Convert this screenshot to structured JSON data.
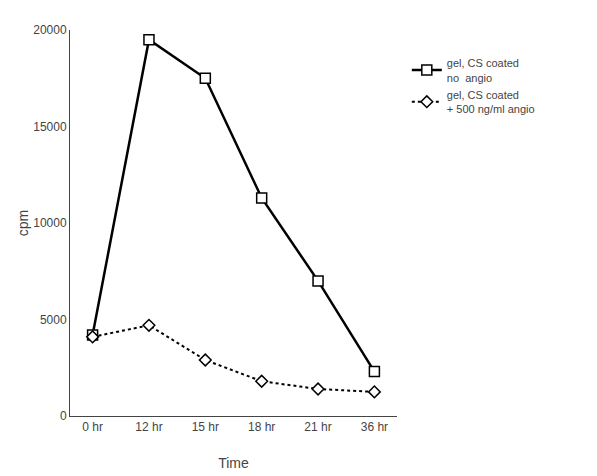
{
  "chart_data": {
    "type": "line",
    "xlabel": "Time",
    "ylabel": "cpm",
    "categories": [
      "0 hr",
      "12 hr",
      "15 hr",
      "18 hr",
      "21 hr",
      "36 hr"
    ],
    "series": [
      {
        "name": "gel, CS coated\nno  angio",
        "color": "#000000",
        "marker": "square",
        "line_style": "solid",
        "values": [
          4200,
          19500,
          17500,
          11300,
          7000,
          2300
        ]
      },
      {
        "name": "gel, CS coated\n+ 500 ng/ml angio",
        "color": "#000000",
        "marker": "diamond",
        "line_style": "dotted",
        "values": [
          4100,
          4700,
          2900,
          1800,
          1400,
          1250
        ]
      }
    ],
    "ylim": [
      0,
      20000
    ],
    "yticks": [
      0,
      5000,
      10000,
      15000,
      20000
    ],
    "grid": false,
    "legend": "right"
  }
}
